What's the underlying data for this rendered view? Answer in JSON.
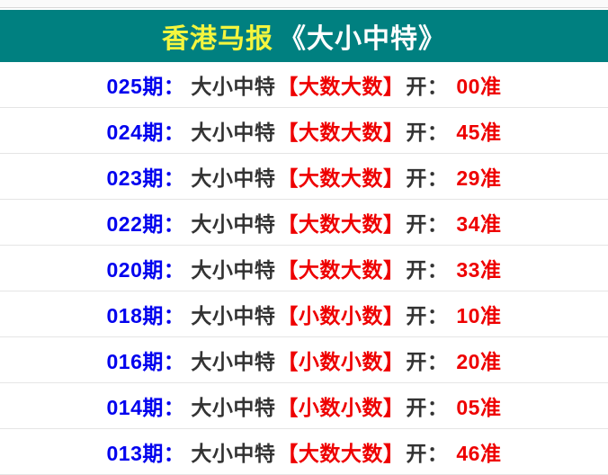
{
  "header": {
    "title_primary": "香港马报",
    "title_secondary": "《大小中特》"
  },
  "colors": {
    "header_bg": "#008080",
    "title_primary": "#f4f53e",
    "title_secondary": "#ffffff",
    "issue_color": "#0202ee",
    "text_color": "#333333",
    "highlight_color": "#ee0000",
    "divider": "#e5e5e5",
    "divider_strong": "#d8d8d8"
  },
  "rows": [
    {
      "issue": "025期：",
      "pick": "大小中特",
      "combo": "【大数大数】",
      "open": "开：",
      "result": "00准"
    },
    {
      "issue": "024期：",
      "pick": "大小中特",
      "combo": "【大数大数】",
      "open": "开：",
      "result": "45准"
    },
    {
      "issue": "023期：",
      "pick": "大小中特",
      "combo": "【大数大数】",
      "open": "开：",
      "result": "29准"
    },
    {
      "issue": "022期：",
      "pick": "大小中特",
      "combo": "【大数大数】",
      "open": "开：",
      "result": "34准"
    },
    {
      "issue": "020期：",
      "pick": "大小中特",
      "combo": "【大数大数】",
      "open": "开：",
      "result": "33准"
    },
    {
      "issue": "018期：",
      "pick": "大小中特",
      "combo": "【小数小数】",
      "open": "开：",
      "result": "10准"
    },
    {
      "issue": "016期：",
      "pick": "大小中特",
      "combo": "【小数小数】",
      "open": "开：",
      "result": "20准"
    },
    {
      "issue": "014期：",
      "pick": "大小中特",
      "combo": "【小数小数】",
      "open": "开：",
      "result": "05准"
    },
    {
      "issue": "013期：",
      "pick": "大小中特",
      "combo": "【大数大数】",
      "open": "开：",
      "result": "46准"
    }
  ]
}
